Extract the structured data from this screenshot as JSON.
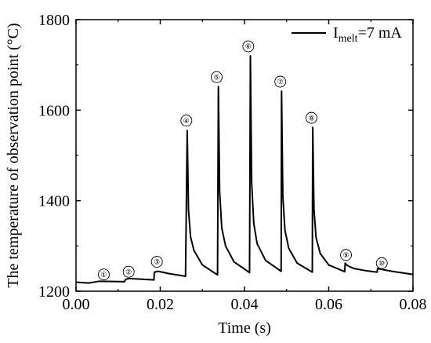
{
  "chart_data": {
    "type": "line",
    "xlabel": "Time (s)",
    "ylabel": "The temperature of observation point (°C)",
    "xlim": [
      0.0,
      0.08
    ],
    "ylim": [
      1200,
      1800
    ],
    "x_ticks": [
      0.0,
      0.02,
      0.04,
      0.06,
      0.08
    ],
    "x_tick_labels": [
      "0.00",
      "0.02",
      "0.04",
      "0.06",
      "0.08"
    ],
    "y_ticks": [
      1200,
      1400,
      1600,
      1800
    ],
    "y_tick_labels": [
      "1200",
      "1400",
      "1600",
      "1800"
    ],
    "grid": false,
    "legend_position": "top-right",
    "series": [
      {
        "name_main": "I",
        "name_sub": "melt",
        "name_rest": "=7 mA",
        "color": "#000000",
        "x": [
          0.0,
          0.003,
          0.0055,
          0.0115,
          0.0118,
          0.0125,
          0.0145,
          0.0185,
          0.0186,
          0.0195,
          0.022,
          0.026,
          0.0264,
          0.0267,
          0.0272,
          0.028,
          0.03,
          0.0336,
          0.0338,
          0.0341,
          0.0346,
          0.0355,
          0.0375,
          0.0412,
          0.0414,
          0.0417,
          0.0422,
          0.043,
          0.045,
          0.0487,
          0.0488,
          0.0491,
          0.0496,
          0.0505,
          0.0525,
          0.0561,
          0.0562,
          0.0565,
          0.057,
          0.058,
          0.06,
          0.0638,
          0.0639,
          0.0641,
          0.0648,
          0.066,
          0.069,
          0.0715,
          0.0716,
          0.0722,
          0.0732,
          0.075,
          0.08
        ],
        "y": [
          1220,
          1218,
          1222,
          1221,
          1226,
          1228,
          1227,
          1225,
          1242,
          1244,
          1239,
          1233,
          1555,
          1380,
          1320,
          1290,
          1258,
          1236,
          1652,
          1420,
          1340,
          1300,
          1265,
          1241,
          1720,
          1440,
          1350,
          1305,
          1268,
          1244,
          1642,
          1410,
          1335,
          1295,
          1262,
          1242,
          1562,
          1380,
          1318,
          1283,
          1258,
          1243,
          1262,
          1259,
          1255,
          1250,
          1245,
          1242,
          1250,
          1249,
          1247,
          1244,
          1237
        ]
      }
    ],
    "annotations": [
      {
        "label": "①",
        "x": 0.0066,
        "y": 1237
      },
      {
        "label": "②",
        "x": 0.0125,
        "y": 1243
      },
      {
        "label": "③",
        "x": 0.0192,
        "y": 1265
      },
      {
        "label": "④",
        "x": 0.0262,
        "y": 1577
      },
      {
        "label": "⑤",
        "x": 0.0334,
        "y": 1673
      },
      {
        "label": "⑥",
        "x": 0.0409,
        "y": 1741
      },
      {
        "label": "⑦",
        "x": 0.0485,
        "y": 1663
      },
      {
        "label": "⑧",
        "x": 0.0559,
        "y": 1583
      },
      {
        "label": "⑨",
        "x": 0.0641,
        "y": 1280
      },
      {
        "label": "⑩",
        "x": 0.0726,
        "y": 1262
      }
    ]
  }
}
